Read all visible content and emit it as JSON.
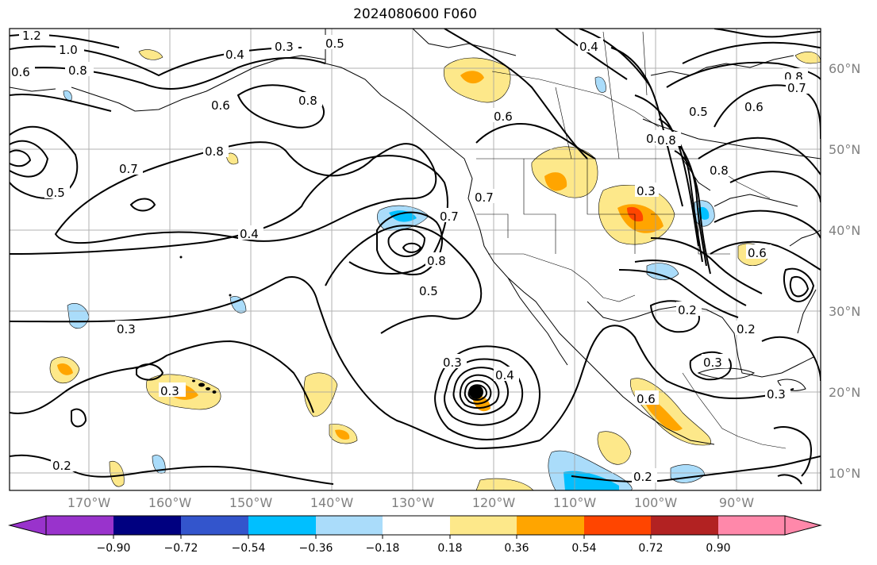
{
  "title": "2024080600 F060",
  "map": {
    "extent": {
      "lon_min": -180,
      "lon_max": -79.2,
      "lat_min": 8.2,
      "lat_max": 65.6
    },
    "lat_labels": [
      "60°N",
      "50°N",
      "40°N",
      "30°N",
      "20°N",
      "10°N"
    ],
    "lon_labels": [
      "170°W",
      "160°W",
      "150°W",
      "140°W",
      "130°W",
      "120°W",
      "110°W",
      "100°W",
      "90°W"
    ],
    "contour_labels": [
      "1.2",
      "1.0",
      "0.8",
      "0.6",
      "0.4",
      "0.3",
      "0.5",
      "0.7",
      "0.8",
      "0.6",
      "0.5",
      "0.7",
      "0.8",
      "0.4",
      "0.3",
      "0.4",
      "0.3",
      "0.5",
      "0.7",
      "0.8",
      "0.6",
      "0.4",
      "0.8",
      "0.6",
      "0.5",
      "0.7",
      "0.8",
      "0.6",
      "0.7",
      "0.8",
      "0.3",
      "0.2",
      "0.3",
      "0.2",
      "0.3",
      "0.2",
      "0.2",
      "0.3",
      "0.6"
    ],
    "colors": {
      "contour": "#000000",
      "grid": "#a0a0a0",
      "land": "#000000"
    }
  },
  "colorbar": {
    "ticks": [
      "−0.90",
      "−0.72",
      "−0.54",
      "−0.36",
      "−0.18",
      "0.18",
      "0.36",
      "0.54",
      "0.72",
      "0.90"
    ],
    "colors": [
      "#9933cc",
      "#000080",
      "#3355cc",
      "#00bfff",
      "#aadcfa",
      "#ffffff",
      "#fde88a",
      "#ffa500",
      "#ff4500",
      "#b22222",
      "#ff88aa"
    ]
  }
}
